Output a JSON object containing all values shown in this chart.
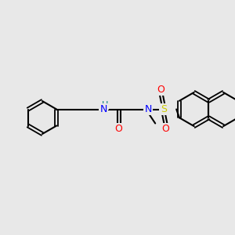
{
  "bg_color": "#e8e8e8",
  "bond_color": "#000000",
  "bond_lw": 1.5,
  "atom_colors": {
    "O": "#ff0000",
    "N": "#0000ff",
    "NH": "#008080",
    "S": "#cccc00",
    "C": "#000000"
  },
  "font_size": 9,
  "figsize": [
    3.0,
    3.0
  ],
  "dpi": 100
}
